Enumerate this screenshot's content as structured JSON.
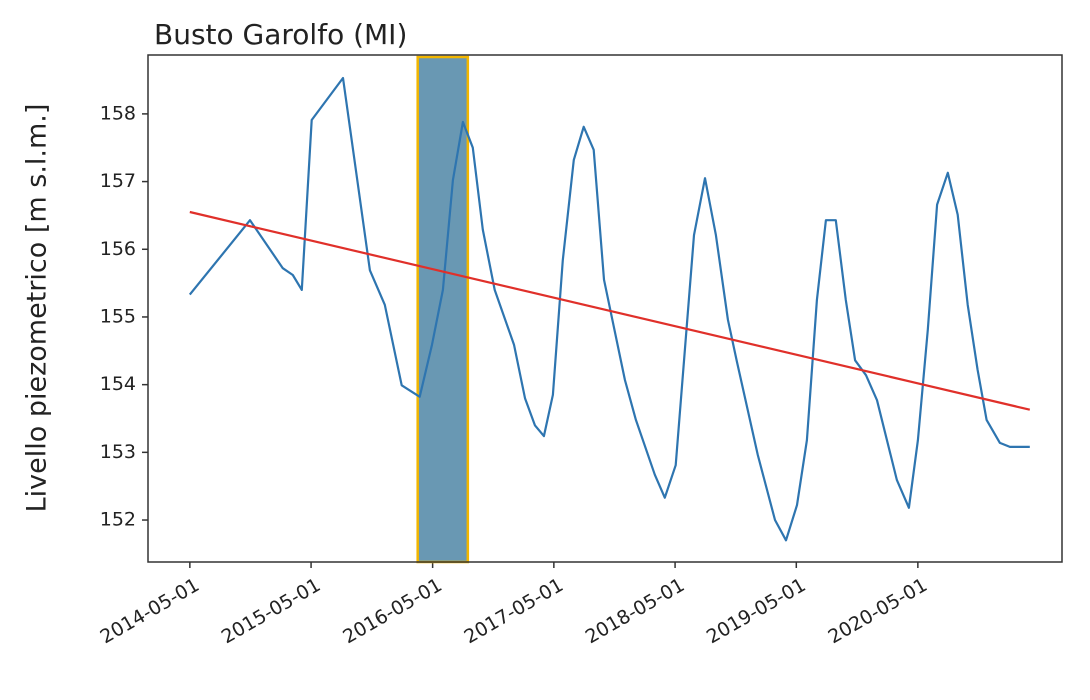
{
  "chart_data": {
    "type": "line",
    "title": "Busto Garolfo (MI)",
    "y_label": "Livello piezometrico [m s.l.m.]",
    "xlim": [
      "2013-12-26",
      "2021-07-09"
    ],
    "ylim": [
      151.38,
      158.87
    ],
    "xticks": [
      "2014-05-01",
      "2015-05-01",
      "2016-05-01",
      "2017-05-01",
      "2018-05-01",
      "2019-05-01",
      "2020-05-01"
    ],
    "yticks": [
      152,
      153,
      154,
      155,
      156,
      157,
      158
    ],
    "highlight": {
      "start": "2016-03-17",
      "end": "2016-08-15",
      "color": "#4f86a6",
      "border_color": "#f2b600"
    },
    "series": [
      {
        "color": "#2e75b0",
        "x": [
          "2014-05-01",
          "2014-10-29",
          "2015-02-05",
          "2015-03-07",
          "2015-04-03",
          "2015-05-03",
          "2015-08-05",
          "2015-10-25",
          "2015-12-09",
          "2016-01-29",
          "2016-03-23",
          "2016-04-29",
          "2016-06-01",
          "2016-07-01",
          "2016-07-31",
          "2016-08-30",
          "2016-09-29",
          "2016-11-04",
          "2017-01-01",
          "2017-02-03",
          "2017-03-05",
          "2017-04-01",
          "2017-04-28",
          "2017-05-28",
          "2017-06-30",
          "2017-07-30",
          "2017-08-29",
          "2017-09-29",
          "2017-12-01",
          "2018-01-03",
          "2018-03-01",
          "2018-03-31",
          "2018-05-03",
          "2018-06-27",
          "2018-07-30",
          "2018-09-01",
          "2018-10-07",
          "2018-11-03",
          "2019-01-05",
          "2019-02-26",
          "2019-03-31",
          "2019-05-03",
          "2019-06-02",
          "2019-07-02",
          "2019-07-29",
          "2019-08-28",
          "2019-09-27",
          "2019-10-25",
          "2019-11-27",
          "2019-12-30",
          "2020-02-28",
          "2020-04-04",
          "2020-05-01",
          "2020-05-31",
          "2020-06-28",
          "2020-07-30",
          "2020-08-29",
          "2020-09-28",
          "2020-10-28",
          "2020-11-24",
          "2021-01-03",
          "2021-02-02",
          "2021-04-03"
        ],
        "values": [
          155.33,
          156.43,
          155.72,
          155.62,
          155.4,
          157.91,
          158.53,
          155.69,
          155.18,
          153.99,
          153.82,
          154.59,
          155.4,
          157.02,
          157.88,
          157.5,
          156.29,
          155.4,
          154.59,
          153.8,
          153.4,
          153.24,
          153.85,
          155.84,
          157.32,
          157.81,
          157.47,
          155.55,
          154.07,
          153.48,
          152.67,
          152.33,
          152.81,
          156.21,
          157.05,
          156.21,
          154.96,
          154.34,
          152.96,
          152.0,
          151.7,
          152.22,
          153.18,
          155.25,
          156.43,
          156.43,
          155.25,
          154.36,
          154.14,
          153.77,
          152.59,
          152.18,
          153.18,
          154.81,
          156.66,
          157.13,
          156.51,
          155.18,
          154.22,
          153.48,
          153.14,
          153.08,
          153.08
        ]
      },
      {
        "color": "#e0302a",
        "x": [
          "2014-05-01",
          "2021-04-03"
        ],
        "values": [
          156.55,
          153.63
        ]
      }
    ]
  }
}
